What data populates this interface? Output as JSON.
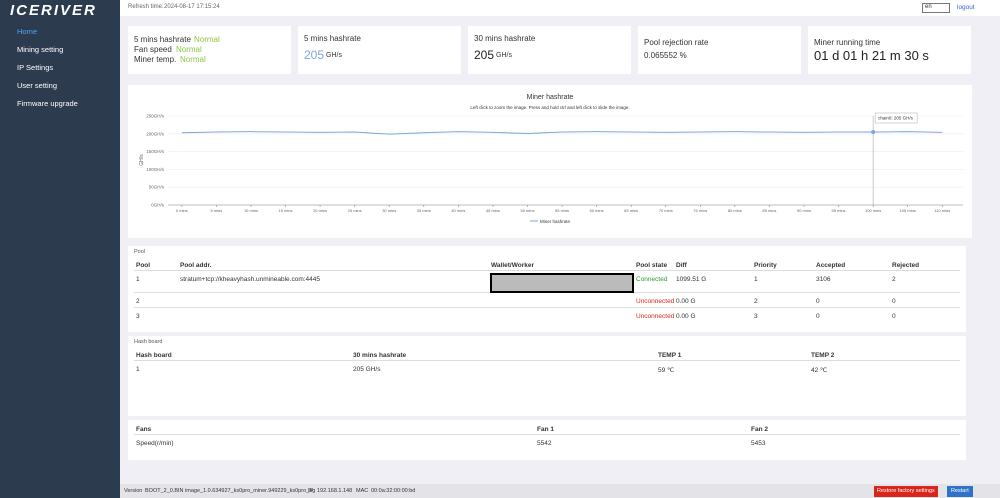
{
  "sidebar": {
    "logo": "ICERIVER",
    "nav": [
      "Home",
      "Mining setting",
      "IP Settings",
      "User setting",
      "Firmware upgrade"
    ]
  },
  "topbar": {
    "refresh_label": "Refresh time:",
    "refresh_time": "2024-08-17 17:15:24",
    "language": "en",
    "logout": "logout"
  },
  "status": {
    "color": "#8cc63f",
    "items": [
      {
        "label": "5 mins hashrate",
        "value": "Normal"
      },
      {
        "label": "Fan speed",
        "value": "Normal"
      },
      {
        "label": "Miner temp.",
        "value": "Normal"
      }
    ]
  },
  "cards": [
    {
      "title": "5 mins hashrate",
      "value": "205",
      "unit": "GH/s"
    },
    {
      "title": "30 mins hashrate",
      "value": "205",
      "unit": "GH/s"
    },
    {
      "title": "Pool rejection rate",
      "value": "0.065552 %"
    },
    {
      "title": "Miner running time",
      "value": "01 d 01 h 21 m 30 s"
    }
  ],
  "hashrate_chart": {
    "type": "line",
    "title": "Miner hashrate",
    "subtitle": "Left click to zoom the image. Press and hold ctrl and left click to slide the image.",
    "y_label": "GH/s",
    "x": [
      0,
      5,
      10,
      15,
      20,
      25,
      30,
      35,
      40,
      45,
      50,
      55,
      60,
      65,
      70,
      75,
      80,
      85,
      90,
      95,
      100,
      105,
      110
    ],
    "series": [
      {
        "name": "Miner hashrate",
        "color": "#7ea6d8",
        "values": [
          203,
          205,
          206,
          205,
          204,
          205,
          199,
          203,
          206,
          204,
          201,
          205,
          206,
          205,
          204,
          205,
          206,
          205,
          204,
          205,
          205,
          206,
          204
        ]
      }
    ],
    "xlim": [
      -2,
      113
    ],
    "ylim": [
      0,
      250
    ],
    "xticks": [
      {
        "value": 0,
        "label": "0 mins"
      },
      {
        "value": 5,
        "label": "5 mins"
      },
      {
        "value": 10,
        "label": "10 mins"
      },
      {
        "value": 15,
        "label": "15 mins"
      },
      {
        "value": 20,
        "label": "20 mins"
      },
      {
        "value": 25,
        "label": "25 mins"
      },
      {
        "value": 30,
        "label": "30 mins"
      },
      {
        "value": 35,
        "label": "35 mins"
      },
      {
        "value": 40,
        "label": "40 mins"
      },
      {
        "value": 45,
        "label": "45 mins"
      },
      {
        "value": 50,
        "label": "50 mins"
      },
      {
        "value": 55,
        "label": "55 mins"
      },
      {
        "value": 60,
        "label": "60 mins"
      },
      {
        "value": 65,
        "label": "65 mins"
      },
      {
        "value": 70,
        "label": "70 mins"
      },
      {
        "value": 75,
        "label": "75 mins"
      },
      {
        "value": 80,
        "label": "80 mins"
      },
      {
        "value": 85,
        "label": "85 mins"
      },
      {
        "value": 90,
        "label": "90 mins"
      },
      {
        "value": 95,
        "label": "95 mins"
      },
      {
        "value": 100,
        "label": "100 mins"
      },
      {
        "value": 105,
        "label": "105 mins"
      },
      {
        "value": 110,
        "label": "110 mins"
      }
    ],
    "yticks": [
      {
        "value": 0,
        "label": "0GH/s"
      },
      {
        "value": 50,
        "label": "50GH/s"
      },
      {
        "value": 100,
        "label": "100GH/s"
      },
      {
        "value": 150,
        "label": "150GH/s"
      },
      {
        "value": 200,
        "label": "200GH/s"
      },
      {
        "value": 250,
        "label": "250GH/s"
      }
    ],
    "grid": true,
    "tooltip": {
      "index": 20,
      "text": "chain0: 205 GH/s"
    }
  },
  "pool": {
    "title": "Pool",
    "headers": [
      "Pool",
      "Pool addr.",
      "Wallet/Worker",
      "Pool state",
      "Diff",
      "Priority",
      "Accepted",
      "Rejected"
    ],
    "state_colors": [
      "#2e9a2e",
      "#d9261c",
      "#d9261c"
    ],
    "rows": [
      [
        "1",
        "stratum+tcp://kheavyhash.unmineable.com:4445",
        null,
        "Connected",
        "1099.51 G",
        "1",
        "3106",
        "2"
      ],
      [
        "2",
        null,
        null,
        "Unconnected",
        "0.00 G",
        "2",
        "0",
        "0"
      ],
      [
        "3",
        null,
        null,
        "Unconnected",
        "0.00 G",
        "3",
        "0",
        "0"
      ]
    ]
  },
  "hash_board": {
    "title": "Hash board",
    "headers": [
      "Hash board",
      "30 mins hashrate",
      "TEMP 1",
      "TEMP 2"
    ],
    "rows": [
      [
        "1",
        "205 GH/s",
        "59 ℃",
        "42 ℃"
      ]
    ]
  },
  "fans": {
    "headers": [
      "Fans",
      "Fan 1",
      "Fan 2"
    ],
    "rows": [
      [
        "Speed(r/min)",
        "5542",
        "5453"
      ]
    ]
  },
  "footer": {
    "version_label": "Version",
    "version": "BOOT_2_0.BIN image_1.0.634927_ks0pro_miner.949229_ks0pro_bg",
    "ip_label": "IP",
    "ip": "192.168.1.148",
    "mac_label": "MAC",
    "mac": "00:0a:32:00:00:bd",
    "restore": "Restore factory settings",
    "restart": "Restart"
  }
}
